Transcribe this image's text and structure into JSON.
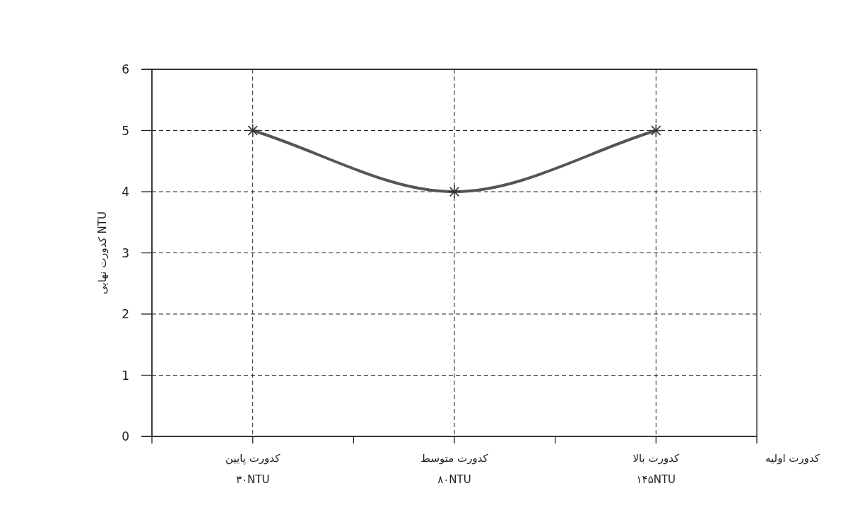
{
  "chart_data": {
    "type": "line",
    "xlabel": "کدورت اولیه",
    "ylabel": "کدورت نهایی NTU",
    "categories": [
      "کدورت پایین\n۳۰NTU",
      "کدورت متوسط\n۸۰NTU",
      "کدورت بالا\n۱۴۵NTU"
    ],
    "series": [
      {
        "color": "#555555",
        "values": [
          5,
          4,
          5
        ]
      }
    ],
    "ylim": [
      0,
      6
    ],
    "yticks": [
      0,
      1,
      2,
      3,
      4,
      5,
      6
    ],
    "grid": true,
    "marker": "cross",
    "line_style": "solid"
  }
}
